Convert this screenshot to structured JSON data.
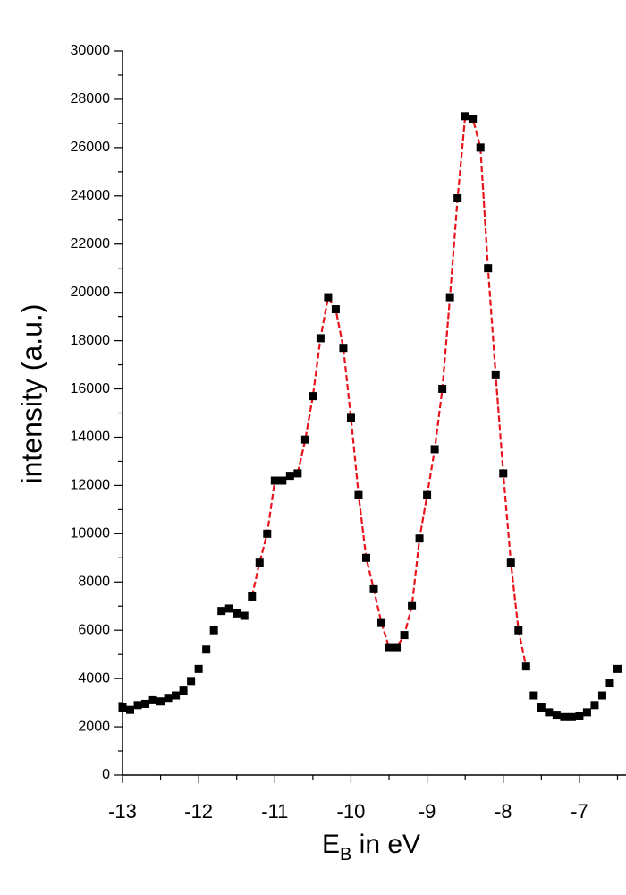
{
  "chart_data": {
    "type": "scatter",
    "y_label": "intensity (a.u.)",
    "x_label": {
      "main": "E",
      "subscript": "B",
      "rest": " in eV"
    },
    "xlim": [
      -13,
      -6.4
    ],
    "ylim": [
      0,
      30000
    ],
    "xticks": [
      -13,
      -12,
      -11,
      -10,
      -9,
      -8,
      -7
    ],
    "xminorticks": [
      -12.5,
      -11.5,
      -10.5,
      -9.5,
      -8.5,
      -7.5,
      -6.5
    ],
    "yticks": [
      0,
      2000,
      4000,
      6000,
      8000,
      10000,
      12000,
      14000,
      16000,
      18000,
      20000,
      22000,
      24000,
      26000,
      28000,
      30000
    ],
    "yminorticks": [
      1000,
      3000,
      5000,
      7000,
      9000,
      11000,
      13000,
      15000,
      17000,
      19000,
      21000,
      23000,
      25000,
      27000,
      29000
    ],
    "series": [
      {
        "mode": "markers",
        "color": "#000000",
        "x": [
          -13,
          -12.9,
          -12.8,
          -12.7,
          -12.6,
          -12.5,
          -12.4,
          -12.3,
          -12.2,
          -12.1,
          -12,
          -11.9,
          -11.8,
          -11.7,
          -11.6,
          -11.5,
          -11.4,
          -11.3,
          -11.2,
          -11.1,
          -11,
          -10.9,
          -10.8,
          -10.7,
          -10.6,
          -10.5,
          -10.4,
          -10.3,
          -10.2,
          -10.1,
          -10,
          -9.9,
          -9.8,
          -9.7,
          -9.6,
          -9.5,
          -9.4,
          -9.3,
          -9.2,
          -9.1,
          -9,
          -8.9,
          -8.8,
          -8.7,
          -8.6,
          -8.5,
          -8.4,
          -8.3,
          -8.2,
          -8.1,
          -8,
          -7.9,
          -7.8,
          -7.7,
          -7.6,
          -7.5,
          -7.4,
          -7.3,
          -7.2,
          -7.1,
          -7,
          -6.9,
          -6.8,
          -6.7,
          -6.6,
          -6.5
        ],
        "values": [
          2800,
          2700,
          2900,
          2950,
          3100,
          3050,
          3200,
          3300,
          3500,
          3900,
          4400,
          5200,
          6000,
          6800,
          6900,
          6700,
          6600,
          7400,
          8800,
          10000,
          12200,
          12200,
          12400,
          12500,
          13900,
          15700,
          18100,
          19800,
          19300,
          17700,
          14800,
          11600,
          9000,
          7700,
          6300,
          5300,
          5300,
          5800,
          7000,
          9800,
          11600,
          13500,
          16000,
          19800,
          23900,
          27300,
          27200,
          26000,
          21000,
          16600,
          12500,
          8800,
          6000,
          4500,
          3300,
          2800,
          2600,
          2500,
          2400,
          2400,
          2450,
          2600,
          2900,
          3300,
          3800,
          4400
        ]
      },
      {
        "mode": "line",
        "color": "#e8141c",
        "x": [
          -11.3,
          -11.2,
          -11.1,
          -11,
          -10.9,
          -10.8,
          -10.7,
          -10.6,
          -10.5,
          -10.4,
          -10.3,
          -10.2,
          -10.1,
          -10,
          -9.9,
          -9.8,
          -9.7,
          -9.6,
          -9.5,
          -9.4,
          -9.3,
          -9.2,
          -9.1,
          -9,
          -8.9,
          -8.8,
          -8.7,
          -8.6,
          -8.5,
          -8.4,
          -8.3,
          -8.2,
          -8.1,
          -8,
          -7.9,
          -7.8,
          -7.7
        ],
        "values": [
          7400,
          8800,
          10000,
          12200,
          12200,
          12400,
          12500,
          13900,
          15700,
          18100,
          19800,
          19300,
          17700,
          14800,
          11600,
          9000,
          7700,
          6300,
          5300,
          5300,
          5800,
          7000,
          9800,
          11600,
          13500,
          16000,
          19800,
          23900,
          27300,
          27200,
          26000,
          21000,
          16600,
          12500,
          8800,
          6000,
          4500
        ]
      }
    ]
  }
}
